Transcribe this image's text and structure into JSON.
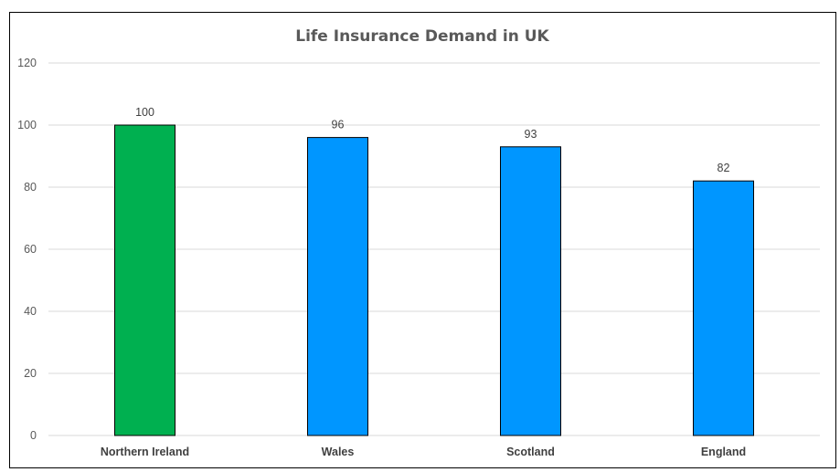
{
  "chart_data": {
    "type": "bar",
    "title": "Life Insurance Demand in UK",
    "categories": [
      "Northern Ireland",
      "Wales",
      "Scotland",
      "England"
    ],
    "values": [
      100,
      96,
      93,
      82
    ],
    "bar_colors": [
      "#00B050",
      "#0096FF",
      "#0096FF",
      "#0096FF"
    ],
    "bar_outline": "#000000",
    "ylim": [
      0,
      120
    ],
    "yticks": [
      0,
      20,
      40,
      60,
      80,
      100,
      120
    ],
    "grid": true,
    "gridline_color": "#D9D9D9",
    "data_labels": true,
    "legend": "none"
  }
}
